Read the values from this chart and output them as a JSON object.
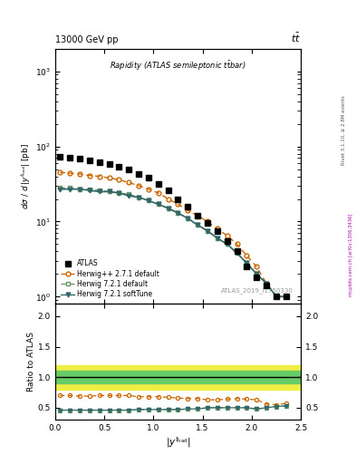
{
  "title_top": "13000 GeV pp",
  "title_right": "tt",
  "plot_title": "Rapidity (ATLAS semileptonic ttbar)",
  "watermark": "ATLAS_2019_I1750330",
  "rivet_label": "Rivet 3.1.10, ≥ 2.8M events",
  "arxiv_label": "mcplots.cern.ch [arXiv:1306.3436]",
  "x_values": [
    0.05,
    0.15,
    0.25,
    0.35,
    0.45,
    0.55,
    0.65,
    0.75,
    0.85,
    0.95,
    1.05,
    1.15,
    1.25,
    1.35,
    1.45,
    1.55,
    1.65,
    1.75,
    1.85,
    1.95,
    2.05,
    2.15,
    2.25,
    2.35
  ],
  "atlas_y": [
    72,
    70,
    68,
    65,
    62,
    59,
    54,
    49,
    43,
    38,
    32,
    26,
    20,
    16,
    12,
    9.5,
    7.5,
    5.5,
    4.0,
    2.5,
    1.8,
    1.4,
    1.0,
    1.0
  ],
  "herwig_pp_y": [
    45,
    44,
    43,
    41,
    40,
    38,
    36,
    33,
    30,
    27,
    24,
    20,
    17,
    14,
    12,
    10,
    8.0,
    6.5,
    5.0,
    3.5,
    2.5,
    1.5,
    1.0,
    1.0
  ],
  "herwig721_def_y": [
    28,
    28,
    27,
    27,
    26,
    25,
    24,
    23,
    21,
    19,
    17,
    15,
    13,
    11,
    9.0,
    7.5,
    6.0,
    5.0,
    3.8,
    2.8,
    2.0,
    1.5,
    1.0,
    1.0
  ],
  "herwig721_soft_y": [
    27,
    27,
    27,
    26,
    25,
    25,
    24,
    22,
    21,
    19,
    17,
    15,
    13,
    11,
    9.0,
    7.5,
    6.0,
    5.0,
    3.8,
    2.8,
    2.0,
    1.5,
    1.0,
    1.0
  ],
  "ratio_herwig_pp": [
    0.7,
    0.7,
    0.69,
    0.69,
    0.7,
    0.7,
    0.7,
    0.7,
    0.68,
    0.68,
    0.68,
    0.67,
    0.66,
    0.65,
    0.65,
    0.63,
    0.63,
    0.64,
    0.65,
    0.64,
    0.63,
    0.56,
    0.55,
    0.57
  ],
  "ratio_herwig721_def": [
    0.46,
    0.46,
    0.46,
    0.46,
    0.46,
    0.46,
    0.46,
    0.46,
    0.47,
    0.47,
    0.47,
    0.47,
    0.47,
    0.48,
    0.48,
    0.5,
    0.5,
    0.5,
    0.5,
    0.5,
    0.48,
    0.5,
    0.52,
    0.53
  ],
  "ratio_herwig721_soft": [
    0.46,
    0.46,
    0.46,
    0.46,
    0.46,
    0.46,
    0.46,
    0.46,
    0.47,
    0.47,
    0.47,
    0.47,
    0.47,
    0.48,
    0.48,
    0.5,
    0.5,
    0.5,
    0.5,
    0.5,
    0.48,
    0.5,
    0.52,
    0.53
  ],
  "band_green_low": 0.9,
  "band_green_high": 1.1,
  "band_yellow_low": 0.8,
  "band_yellow_high": 1.2,
  "color_atlas": "#000000",
  "color_herwig_pp": "#cc6600",
  "color_herwig721_def": "#669966",
  "color_herwig721_soft": "#336666",
  "color_band_green": "#66cc66",
  "color_band_yellow": "#eeee44",
  "xlim": [
    0,
    2.5
  ],
  "ylim_main": [
    0.8,
    2000
  ],
  "ylim_ratio": [
    0.3,
    2.2
  ],
  "ratio_yticks": [
    0.5,
    1.0,
    1.5,
    2.0
  ]
}
